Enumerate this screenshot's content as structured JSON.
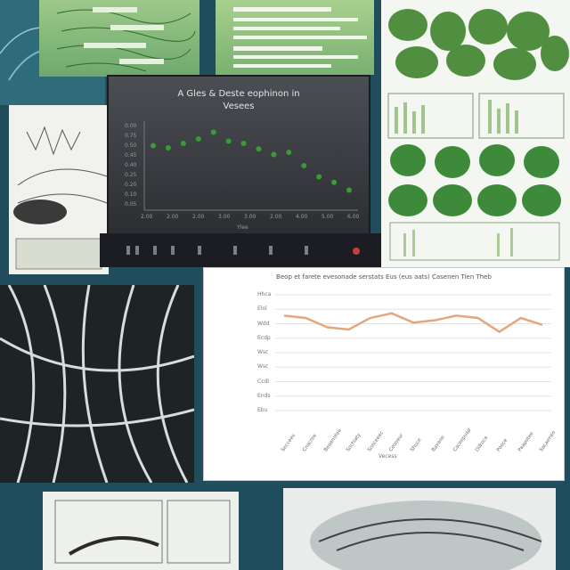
{
  "dark_chart": {
    "title_line1": "A Gles & Deste eophinon in",
    "title_line2": "Vesees",
    "y_ticks": [
      "0.00",
      "0.75",
      "0.50",
      "0.45",
      "0.40",
      "0.25",
      "0.20",
      "0.10",
      "0.05"
    ],
    "x_ticks": [
      "2.00",
      "2.00",
      "2.00",
      "3.00",
      "3.00",
      "2.00",
      "4.00",
      "5.00",
      "6.00"
    ],
    "x_label": "Ylee"
  },
  "line_chart": {
    "title": "Beop et farete evesonade serstats Eus (eus aats) Casenen Tien Theb",
    "y_ticks": [
      "Hhca",
      "Elol",
      "Wdd",
      "Ecdp",
      "Wsc",
      "Wsc",
      "Ccdl",
      "Ends",
      "Ebu"
    ],
    "x_ticks": [
      "Seccees",
      "Cnacree",
      "Beaenotee",
      "Sochiaty",
      "Sooceeec",
      "Ceoneur",
      "Shuce",
      "Baveoe",
      "Caceepusp",
      "Dilkoce",
      "Pooce",
      "Paapotee",
      "Sacaeneo"
    ],
    "x_label": "Vecess"
  },
  "chart_data": [
    {
      "type": "scatter",
      "title": "A Gles & Deste eophinon in Vesees",
      "xlabel": "Ylee",
      "ylabel": "",
      "series": [
        {
          "values": [
            [
              1,
              0.58
            ],
            [
              2,
              0.56
            ],
            [
              3,
              0.6
            ],
            [
              4,
              0.64
            ],
            [
              5,
              0.7
            ],
            [
              6,
              0.62
            ],
            [
              7,
              0.6
            ],
            [
              8,
              0.55
            ],
            [
              9,
              0.5
            ],
            [
              10,
              0.52
            ],
            [
              11,
              0.4
            ],
            [
              12,
              0.3
            ],
            [
              13,
              0.25
            ],
            [
              14,
              0.18
            ]
          ]
        }
      ]
    },
    {
      "type": "line",
      "title": "Beop et farete evesonade serstats Eus (eus aats) Casenen Tien Theb",
      "xlabel": "Vecess",
      "ylabel": "",
      "categories": [
        "Seccees",
        "Cnacree",
        "Beaenotee",
        "Sochiaty",
        "Sooceeec",
        "Ceoneur",
        "Shuce",
        "Baveoe",
        "Caceepusp",
        "Dilkoce",
        "Pooce",
        "Paapotee",
        "Sacaeneo"
      ],
      "series": [
        {
          "values": [
            82,
            80,
            72,
            70,
            80,
            84,
            76,
            78,
            82,
            80,
            68,
            80,
            74
          ]
        }
      ],
      "ylim": [
        0,
        100
      ]
    }
  ],
  "colors": {
    "dark_points": "#3a9a3a",
    "line": "#e4a77d",
    "accent_green": "#2f8a3a",
    "teal_bg": "#1f4d5c"
  }
}
